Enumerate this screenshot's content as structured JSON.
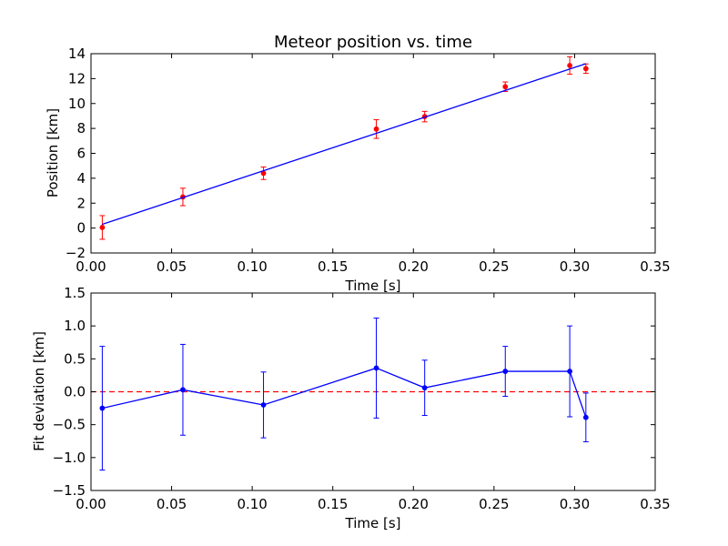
{
  "chart_data": [
    {
      "type": "scatter",
      "title": "Meteor position vs. time",
      "xlabel": "Time [s]",
      "ylabel": "Position [km]",
      "xlim": [
        0.0,
        0.35
      ],
      "ylim": [
        -2,
        14
      ],
      "xticks": [
        "0.00",
        "0.05",
        "0.10",
        "0.15",
        "0.20",
        "0.25",
        "0.30",
        "0.35"
      ],
      "yticks": [
        "−2",
        "0",
        "2",
        "4",
        "6",
        "8",
        "10",
        "12",
        "14"
      ],
      "grid": false,
      "series": [
        {
          "kind": "errorbar-points",
          "color": "#ff0000",
          "x": [
            0.007,
            0.057,
            0.107,
            0.177,
            0.207,
            0.257,
            0.297,
            0.307
          ],
          "y": [
            0.05,
            2.5,
            4.4,
            7.95,
            8.95,
            11.35,
            13.05,
            12.8
          ],
          "yerr": [
            0.95,
            0.7,
            0.5,
            0.75,
            0.42,
            0.38,
            0.7,
            0.38
          ]
        },
        {
          "kind": "fit-line",
          "color": "#0000ff",
          "x": [
            0.007,
            0.307
          ],
          "y": [
            0.3,
            13.2
          ]
        }
      ]
    },
    {
      "type": "line",
      "title": "",
      "xlabel": "Time [s]",
      "ylabel": "Fit deviation [km]",
      "xlim": [
        0.0,
        0.35
      ],
      "ylim": [
        -1.5,
        1.5
      ],
      "xticks": [
        "0.00",
        "0.05",
        "0.10",
        "0.15",
        "0.20",
        "0.25",
        "0.30",
        "0.35"
      ],
      "yticks": [
        "−1.5",
        "−1.0",
        "−0.5",
        "0.0",
        "0.5",
        "1.0",
        "1.5"
      ],
      "grid": false,
      "reference_line": {
        "y": 0,
        "color": "#ff0000",
        "style": "dashed"
      },
      "series": [
        {
          "kind": "errorbar-line",
          "color": "#0000ff",
          "x": [
            0.007,
            0.057,
            0.107,
            0.177,
            0.207,
            0.257,
            0.297,
            0.307
          ],
          "y": [
            -0.25,
            0.03,
            -0.2,
            0.36,
            0.06,
            0.31,
            0.31,
            -0.39
          ],
          "yerr": [
            0.94,
            0.69,
            0.5,
            0.76,
            0.42,
            0.38,
            0.69,
            0.37
          ]
        }
      ]
    }
  ]
}
